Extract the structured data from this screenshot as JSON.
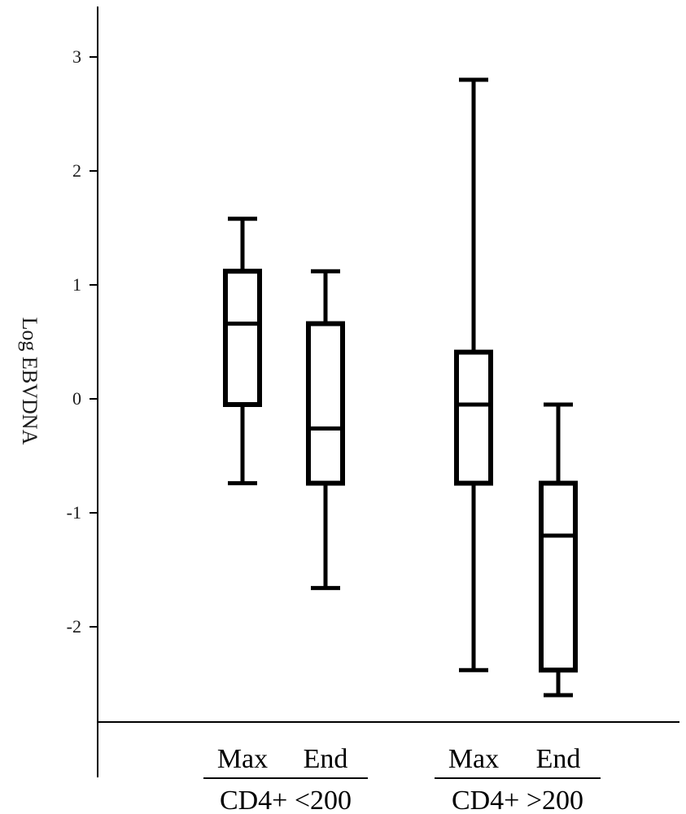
{
  "chart_data": {
    "type": "box",
    "title": "",
    "xlabel": "",
    "ylabel": "Log EBVDNA",
    "ylim": [
      -2.85,
      3.5
    ],
    "yticks": [
      3,
      2,
      1,
      0,
      -1,
      -2
    ],
    "ytick_labels": [
      "3",
      "2",
      "1",
      "0",
      "-1",
      "-2"
    ],
    "groups": [
      {
        "label": "CD4+ <200",
        "boxes": [
          {
            "label": "Max",
            "whisker_low": -0.74,
            "q1": -0.05,
            "median": 0.66,
            "q3": 1.12,
            "whisker_high": 1.58
          },
          {
            "label": "End",
            "whisker_low": -1.66,
            "q1": -0.74,
            "median": -0.26,
            "q3": 0.66,
            "whisker_high": 1.12
          }
        ]
      },
      {
        "label": "CD4+ >200",
        "boxes": [
          {
            "label": "Max",
            "whisker_low": -2.38,
            "q1": -0.74,
            "median": -0.05,
            "q3": 0.41,
            "whisker_high": 2.8
          },
          {
            "label": "End",
            "whisker_low": -2.6,
            "q1": -2.38,
            "median": -1.2,
            "q3": -0.74,
            "whisker_high": -0.05
          }
        ]
      }
    ],
    "grid": false,
    "legend": "none"
  }
}
